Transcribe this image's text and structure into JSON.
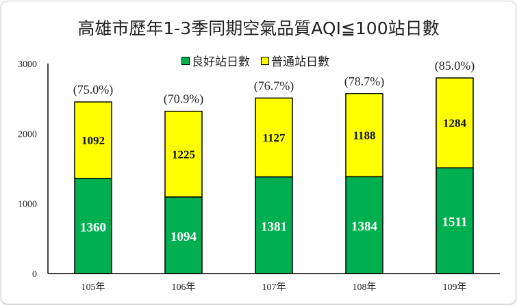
{
  "chart_data": {
    "type": "bar",
    "stacked": true,
    "title": "高雄市歷年1-3季同期空氣品質AQI≦100站日數",
    "categories": [
      "105年",
      "106年",
      "107年",
      "108年",
      "109年"
    ],
    "series": [
      {
        "name": "良好站日數",
        "color": "#00b050",
        "values": [
          1360,
          1094,
          1381,
          1384,
          1511
        ]
      },
      {
        "name": "普通站日數",
        "color": "#ffff00",
        "values": [
          1092,
          1225,
          1127,
          1188,
          1284
        ]
      }
    ],
    "annotations": [
      "(75.0%)",
      "(70.9%)",
      "(76.7%)",
      "(78.7%)",
      "(85.0%)"
    ],
    "yticks": [
      "0",
      "1000",
      "2000",
      "3000"
    ],
    "ylim": [
      0,
      3000
    ],
    "legend_position": "top-center",
    "grid": false
  }
}
